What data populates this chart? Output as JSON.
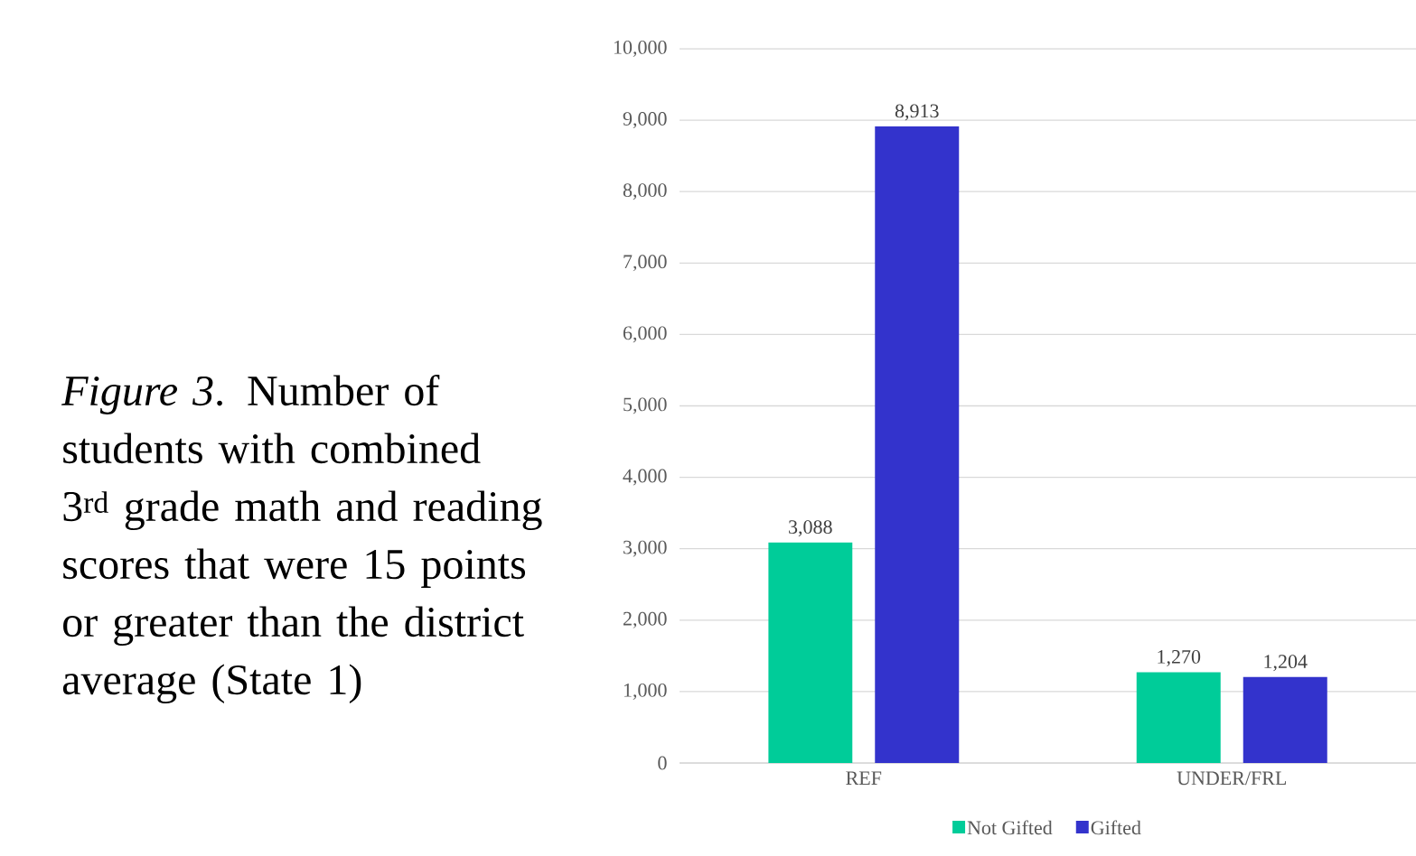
{
  "chart_data": {
    "type": "bar",
    "title": "*Figure 3*. Number of students with combined 3$^{rd}$ grade math and reading scores that were 15 points or greater than the district average (State 1)",
    "categories": [
      "REF",
      "UNDER/FRL"
    ],
    "series": [
      {
        "name": "Not Gifted",
        "color": "#00cc99",
        "values": [
          3088,
          1270
        ],
        "value_labels": [
          "3,088",
          "1,270"
        ]
      },
      {
        "name": "Gifted",
        "color": "#3333cc",
        "values": [
          8913,
          1204
        ],
        "value_labels": [
          "8,913",
          "1,204"
        ]
      }
    ],
    "ylim": [
      0,
      10000
    ],
    "yticks": [
      0,
      {
        "value": 1000,
        "label": "1,000"
      },
      {
        "value": 2000,
        "label": "2,000"
      },
      {
        "value": 3000,
        "label": "3,000"
      },
      {
        "value": 4000,
        "label": "4,000"
      },
      {
        "value": 5000,
        "label": "5,000"
      },
      {
        "value": 6000,
        "label": "6,000"
      },
      {
        "value": 7000,
        "label": "7,000"
      },
      {
        "value": 8000,
        "label": "8,000"
      },
      {
        "value": 9000,
        "label": "9,000"
      },
      {
        "value": 10000,
        "label": "10,000"
      }
    ],
    "grid": "y",
    "legend": "bottom"
  }
}
